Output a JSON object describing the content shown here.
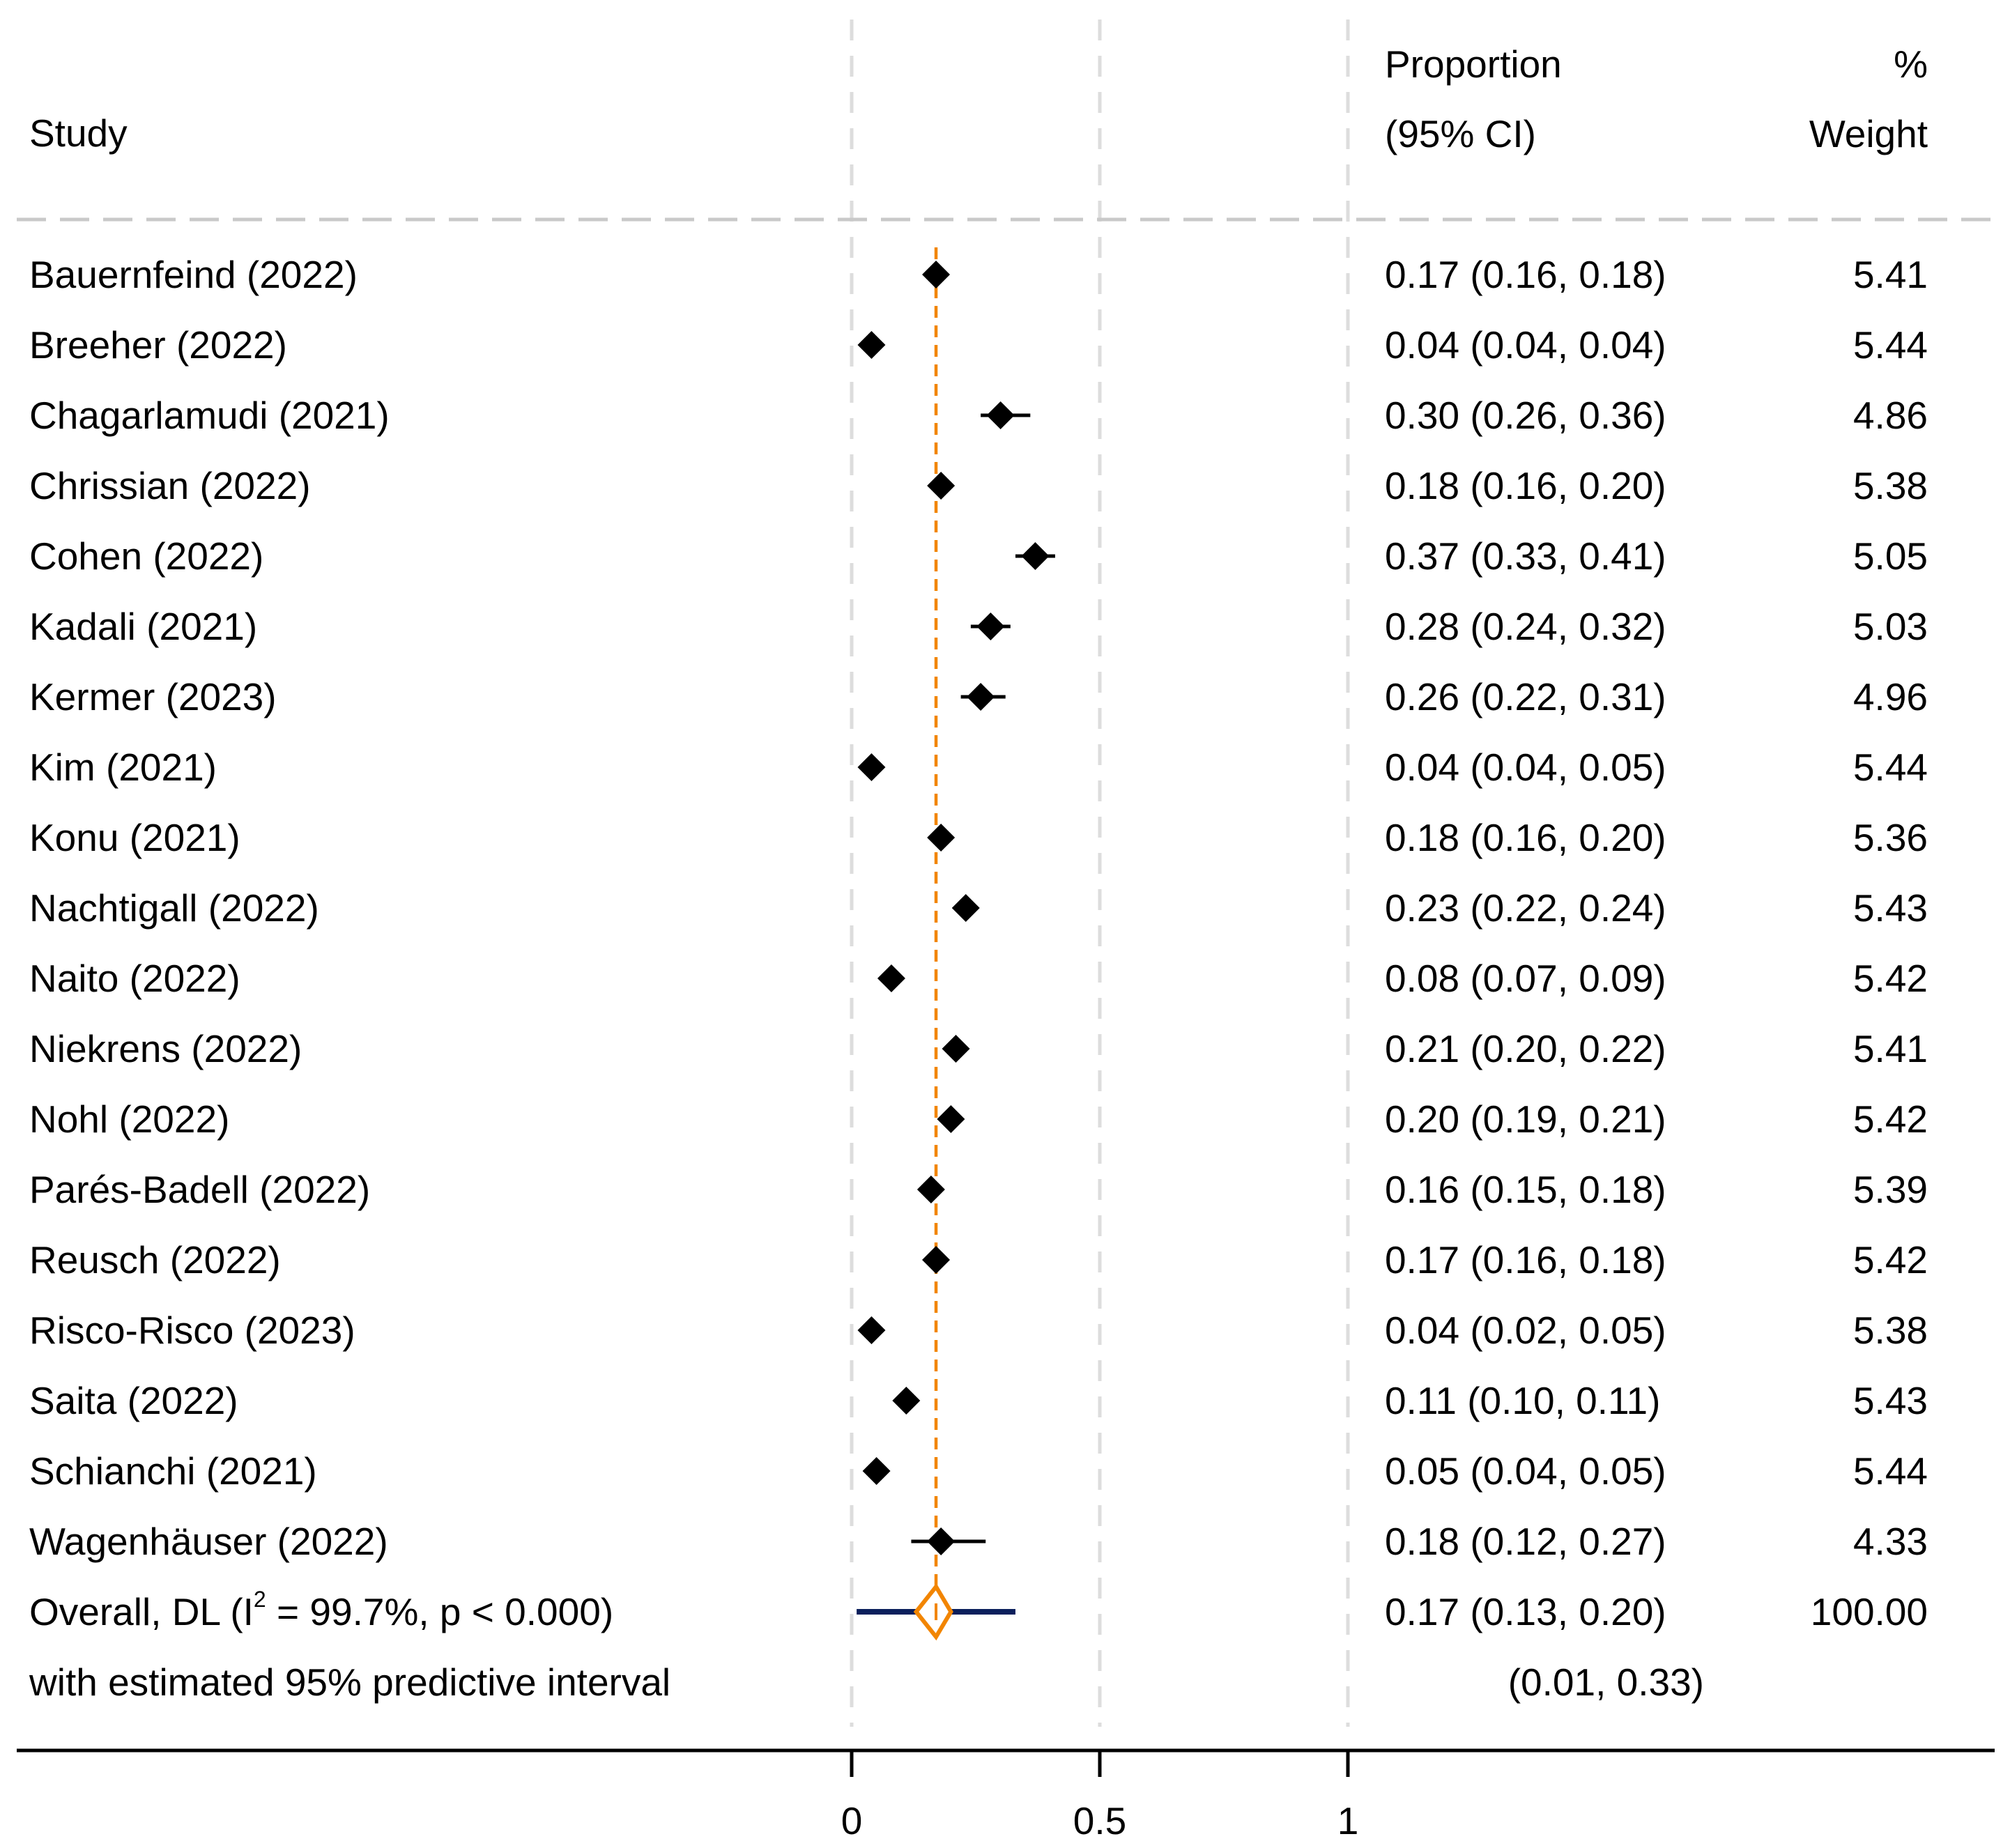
{
  "header": {
    "study": "Study",
    "proportion": "Proportion",
    "ci": "(95% CI)",
    "pct": "%",
    "weight": "Weight"
  },
  "chart_data": {
    "type": "forest",
    "xlabel": "",
    "xlim": [
      0,
      1.0
    ],
    "ticks": [
      {
        "value": 0,
        "label": "0"
      },
      {
        "value": 0.5,
        "label": "0.5"
      },
      {
        "value": 1,
        "label": "1"
      }
    ],
    "colors": {
      "marker": "#000000",
      "pooled_line": "#f28500",
      "pooled_diamond": "#f28500",
      "prediction_interval": "#0b1f5c",
      "gridline": "#dddddd"
    },
    "studies": [
      {
        "label": "Bauernfeind (2022)",
        "est": 0.17,
        "lo": 0.16,
        "hi": 0.18,
        "ci_text": "0.17 (0.16, 0.18)",
        "weight": "5.41"
      },
      {
        "label": "Breeher (2022)",
        "est": 0.04,
        "lo": 0.04,
        "hi": 0.04,
        "ci_text": "0.04 (0.04, 0.04)",
        "weight": "5.44"
      },
      {
        "label": "Chagarlamudi (2021)",
        "est": 0.3,
        "lo": 0.26,
        "hi": 0.36,
        "ci_text": "0.30 (0.26, 0.36)",
        "weight": "4.86"
      },
      {
        "label": "Chrissian (2022)",
        "est": 0.18,
        "lo": 0.16,
        "hi": 0.2,
        "ci_text": "0.18 (0.16, 0.20)",
        "weight": "5.38"
      },
      {
        "label": "Cohen (2022)",
        "est": 0.37,
        "lo": 0.33,
        "hi": 0.41,
        "ci_text": "0.37 (0.33, 0.41)",
        "weight": "5.05"
      },
      {
        "label": "Kadali (2021)",
        "est": 0.28,
        "lo": 0.24,
        "hi": 0.32,
        "ci_text": "0.28 (0.24, 0.32)",
        "weight": "5.03"
      },
      {
        "label": "Kermer (2023)",
        "est": 0.26,
        "lo": 0.22,
        "hi": 0.31,
        "ci_text": "0.26 (0.22, 0.31)",
        "weight": "4.96"
      },
      {
        "label": "Kim (2021)",
        "est": 0.04,
        "lo": 0.04,
        "hi": 0.05,
        "ci_text": "0.04 (0.04, 0.05)",
        "weight": "5.44"
      },
      {
        "label": "Konu (2021)",
        "est": 0.18,
        "lo": 0.16,
        "hi": 0.2,
        "ci_text": "0.18 (0.16, 0.20)",
        "weight": "5.36"
      },
      {
        "label": "Nachtigall (2022)",
        "est": 0.23,
        "lo": 0.22,
        "hi": 0.24,
        "ci_text": "0.23 (0.22, 0.24)",
        "weight": "5.43"
      },
      {
        "label": "Naito (2022)",
        "est": 0.08,
        "lo": 0.07,
        "hi": 0.09,
        "ci_text": "0.08 (0.07, 0.09)",
        "weight": "5.42"
      },
      {
        "label": "Niekrens (2022)",
        "est": 0.21,
        "lo": 0.2,
        "hi": 0.22,
        "ci_text": "0.21 (0.20, 0.22)",
        "weight": "5.41"
      },
      {
        "label": "Nohl (2022)",
        "est": 0.2,
        "lo": 0.19,
        "hi": 0.21,
        "ci_text": "0.20 (0.19, 0.21)",
        "weight": "5.42"
      },
      {
        "label": "Parés-Badell (2022)",
        "est": 0.16,
        "lo": 0.15,
        "hi": 0.18,
        "ci_text": "0.16 (0.15, 0.18)",
        "weight": "5.39"
      },
      {
        "label": "Reusch (2022)",
        "est": 0.17,
        "lo": 0.16,
        "hi": 0.18,
        "ci_text": "0.17 (0.16, 0.18)",
        "weight": "5.42"
      },
      {
        "label": "Risco-Risco (2023)",
        "est": 0.04,
        "lo": 0.02,
        "hi": 0.05,
        "ci_text": "0.04 (0.02, 0.05)",
        "weight": "5.38"
      },
      {
        "label": "Saita (2022)",
        "est": 0.11,
        "lo": 0.1,
        "hi": 0.11,
        "ci_text": "0.11 (0.10, 0.11)",
        "weight": "5.43"
      },
      {
        "label": "Schianchi (2021)",
        "est": 0.05,
        "lo": 0.04,
        "hi": 0.05,
        "ci_text": "0.05 (0.04, 0.05)",
        "weight": "5.44"
      },
      {
        "label": "Wagenhäuser (2022)",
        "est": 0.18,
        "lo": 0.12,
        "hi": 0.27,
        "ci_text": "0.18 (0.12, 0.27)",
        "weight": "4.33"
      }
    ],
    "overall": {
      "label_prefix": "Overall, DL (I",
      "label_sup": "2",
      "label_suffix": " = 99.7%, p < 0.000)",
      "est": 0.17,
      "lo": 0.13,
      "hi": 0.2,
      "ci_text": "0.17 (0.13, 0.20)",
      "weight": "100.00",
      "pi_label": "with estimated 95% predictive interval",
      "pi_lo": 0.01,
      "pi_hi": 0.33,
      "pi_text": "(0.01, 0.33)"
    }
  }
}
